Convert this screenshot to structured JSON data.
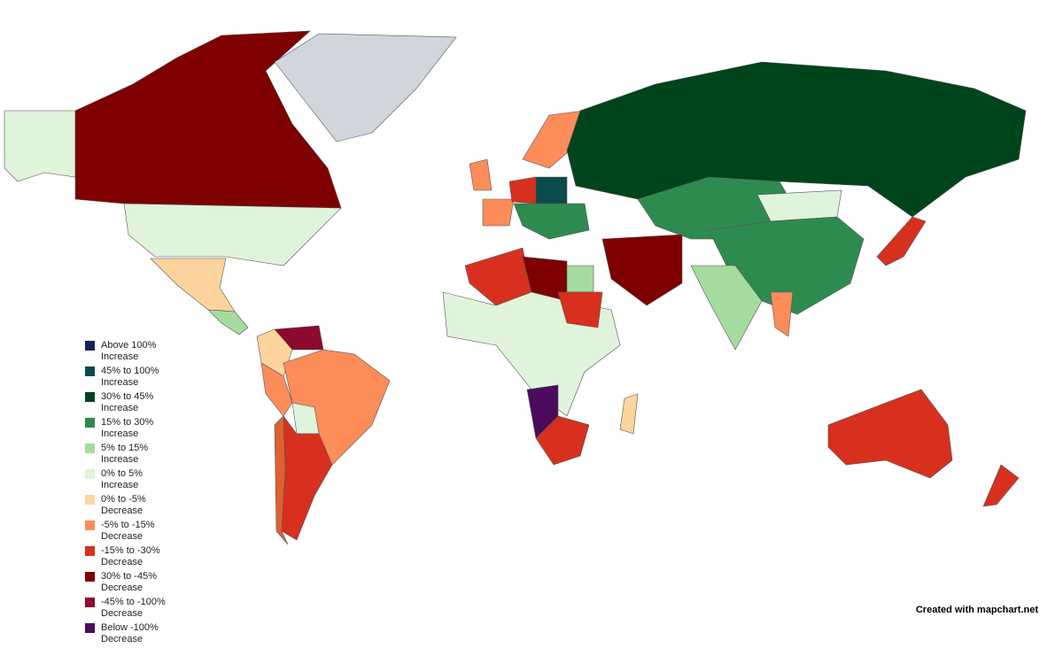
{
  "legend": {
    "items": [
      {
        "label": "Above 100% Increase",
        "color": "#13235f"
      },
      {
        "label": "45% to 100% Increase",
        "color": "#0b4b4b"
      },
      {
        "label": "30% to 45% Increase",
        "color": "#00441b"
      },
      {
        "label": "15% to 30% Increase",
        "color": "#2e8b4f"
      },
      {
        "label": "5% to 15% Increase",
        "color": "#a6dba0"
      },
      {
        "label": "0% to 5% Increase",
        "color": "#e0f3db"
      },
      {
        "label": "0% to -5% Decrease",
        "color": "#fdd49e"
      },
      {
        "label": "-5% to -15% Decrease",
        "color": "#fc8d59"
      },
      {
        "label": "-15% to -30% Decrease",
        "color": "#d7301f"
      },
      {
        "label": "30% to -45% Decrease",
        "color": "#7f0000"
      },
      {
        "label": "-45% to -100% Decrease",
        "color": "#8b0a2e"
      },
      {
        "label": "Below -100% Decrease",
        "color": "#4a0b5c"
      }
    ]
  },
  "credit": "Created with mapchart.net"
}
